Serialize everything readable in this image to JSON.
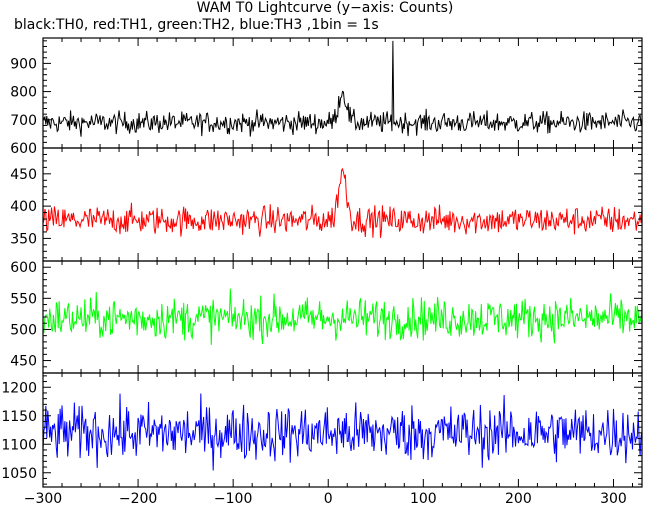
{
  "title": "WAM T0 Lightcurve (y−axis: Counts)",
  "subtitle": "black:TH0, red:TH1, green:TH2, blue:TH3 ,1bin = 1s",
  "chart_data": {
    "type": "line",
    "x_range": [
      -300,
      330
    ],
    "x_ticks": [
      -300,
      -200,
      -100,
      0,
      100,
      200,
      300
    ],
    "x_tick_labels": [
      "−300",
      "−200",
      "−100",
      "0",
      "100",
      "200",
      "300"
    ],
    "panels": [
      {
        "series_name": "TH0",
        "color": "#000000",
        "ylim": [
          600,
          990
        ],
        "y_ticks": [
          600,
          700,
          800,
          900
        ],
        "baseline": 690,
        "noise": 35,
        "features": [
          {
            "type": "peak",
            "center": 15,
            "width": 6,
            "amplitude": 110
          },
          {
            "type": "spike",
            "x": 68,
            "value": 980
          }
        ]
      },
      {
        "series_name": "TH1",
        "color": "#ff0000",
        "ylim": [
          315,
          490
        ],
        "y_ticks": [
          350,
          400,
          450
        ],
        "baseline": 378,
        "noise": 20,
        "features": [
          {
            "type": "peak",
            "center": 15,
            "width": 6,
            "amplitude": 75
          }
        ]
      },
      {
        "series_name": "TH2",
        "color": "#00ff00",
        "ylim": [
          430,
          610
        ],
        "y_ticks": [
          450,
          500,
          550,
          600
        ],
        "baseline": 518,
        "noise": 30,
        "features": []
      },
      {
        "series_name": "TH3",
        "color": "#0000ff",
        "ylim": [
          1025,
          1225
        ],
        "y_ticks": [
          1050,
          1100,
          1150,
          1200
        ],
        "baseline": 1120,
        "noise": 45,
        "features": []
      }
    ]
  }
}
